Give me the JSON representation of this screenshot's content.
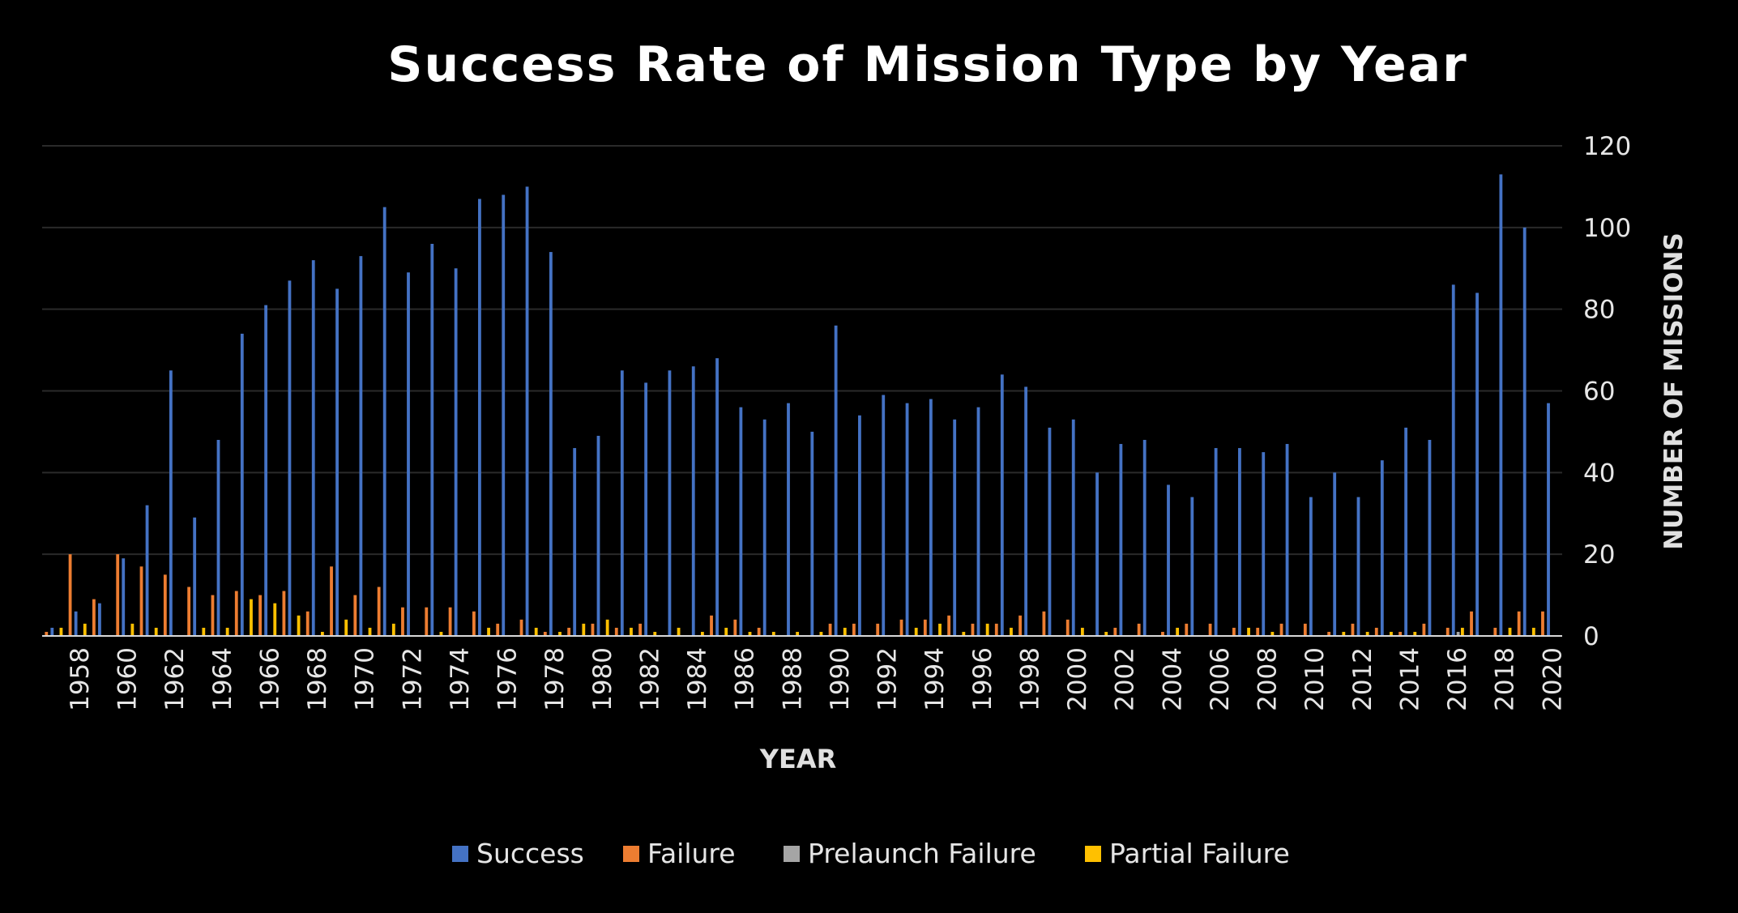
{
  "chart_data": {
    "type": "bar",
    "title": "Success Rate of Mission Type by Year",
    "xlabel": "YEAR",
    "ylabel": "NUMBER OF MISSIONS",
    "ylim": [
      0,
      120
    ],
    "y_ticks": [
      0,
      20,
      40,
      60,
      80,
      100,
      120
    ],
    "y_axis_side": "right",
    "grid": true,
    "legend_position": "bottom",
    "categories": [
      1957,
      1958,
      1959,
      1960,
      1961,
      1962,
      1963,
      1964,
      1965,
      1966,
      1967,
      1968,
      1969,
      1970,
      1971,
      1972,
      1973,
      1974,
      1975,
      1976,
      1977,
      1978,
      1979,
      1980,
      1981,
      1982,
      1983,
      1984,
      1985,
      1986,
      1987,
      1988,
      1989,
      1990,
      1991,
      1992,
      1993,
      1994,
      1995,
      1996,
      1997,
      1998,
      1999,
      2000,
      2001,
      2002,
      2003,
      2004,
      2005,
      2006,
      2007,
      2008,
      2009,
      2010,
      2011,
      2012,
      2013,
      2014,
      2015,
      2016,
      2017,
      2018,
      2019,
      2020
    ],
    "x_tick_labels": [
      "1958",
      "1960",
      "1962",
      "1964",
      "1966",
      "1968",
      "1970",
      "1972",
      "1974",
      "1976",
      "1978",
      "1980",
      "1982",
      "1984",
      "1986",
      "1988",
      "1990",
      "1992",
      "1994",
      "1996",
      "1998",
      "2000",
      "2002",
      "2004",
      "2006",
      "2008",
      "2010",
      "2012",
      "2014",
      "2016",
      "2018",
      "2020"
    ],
    "series": [
      {
        "name": "Success",
        "color": "#4472C4",
        "values": [
          2,
          6,
          8,
          19,
          32,
          65,
          29,
          48,
          74,
          81,
          87,
          92,
          85,
          93,
          105,
          89,
          96,
          90,
          107,
          108,
          110,
          94,
          46,
          49,
          65,
          62,
          65,
          66,
          68,
          56,
          53,
          57,
          50,
          76,
          54,
          59,
          57,
          58,
          53,
          56,
          64,
          61,
          51,
          53,
          40,
          47,
          48,
          37,
          34,
          46,
          46,
          45,
          47,
          34,
          40,
          34,
          43,
          51,
          48,
          86,
          84,
          113,
          100,
          57
        ]
      },
      {
        "name": "Failure",
        "color": "#ED7D31",
        "values": [
          1,
          20,
          9,
          20,
          17,
          15,
          12,
          10,
          11,
          10,
          11,
          6,
          17,
          10,
          12,
          7,
          7,
          7,
          6,
          3,
          4,
          1,
          2,
          3,
          2,
          3,
          0,
          0,
          5,
          4,
          2,
          0,
          0,
          3,
          3,
          3,
          4,
          4,
          5,
          3,
          3,
          5,
          6,
          4,
          0,
          2,
          3,
          1,
          3,
          3,
          2,
          2,
          3,
          3,
          1,
          3,
          2,
          1,
          3,
          2,
          6,
          2,
          6,
          6
        ]
      },
      {
        "name": "Prelaunch Failure",
        "color": "#A5A5A5",
        "values": [
          0,
          0,
          0,
          0,
          0,
          0,
          0,
          0,
          0,
          0,
          0,
          0,
          0,
          0,
          0,
          0,
          0,
          0,
          0,
          0,
          0,
          0,
          0,
          0,
          0,
          0,
          0,
          0,
          0,
          0,
          0,
          0,
          0,
          0,
          0,
          0,
          0,
          0,
          0,
          0,
          0,
          0,
          0,
          0,
          0,
          0,
          0,
          0,
          0,
          0,
          0,
          0,
          0,
          0,
          0,
          0,
          0,
          0,
          0,
          1,
          0,
          0,
          0,
          0
        ]
      },
      {
        "name": "Partial Failure",
        "color": "#FFC000",
        "values": [
          2,
          3,
          0,
          3,
          2,
          0,
          2,
          2,
          9,
          8,
          5,
          1,
          4,
          2,
          3,
          0,
          1,
          0,
          2,
          0,
          2,
          1,
          3,
          4,
          2,
          1,
          2,
          1,
          2,
          1,
          1,
          1,
          1,
          2,
          0,
          0,
          2,
          3,
          1,
          3,
          2,
          0,
          0,
          2,
          1,
          0,
          0,
          2,
          0,
          0,
          2,
          1,
          0,
          0,
          1,
          1,
          1,
          1,
          0,
          2,
          0,
          2,
          2,
          0
        ]
      }
    ]
  }
}
